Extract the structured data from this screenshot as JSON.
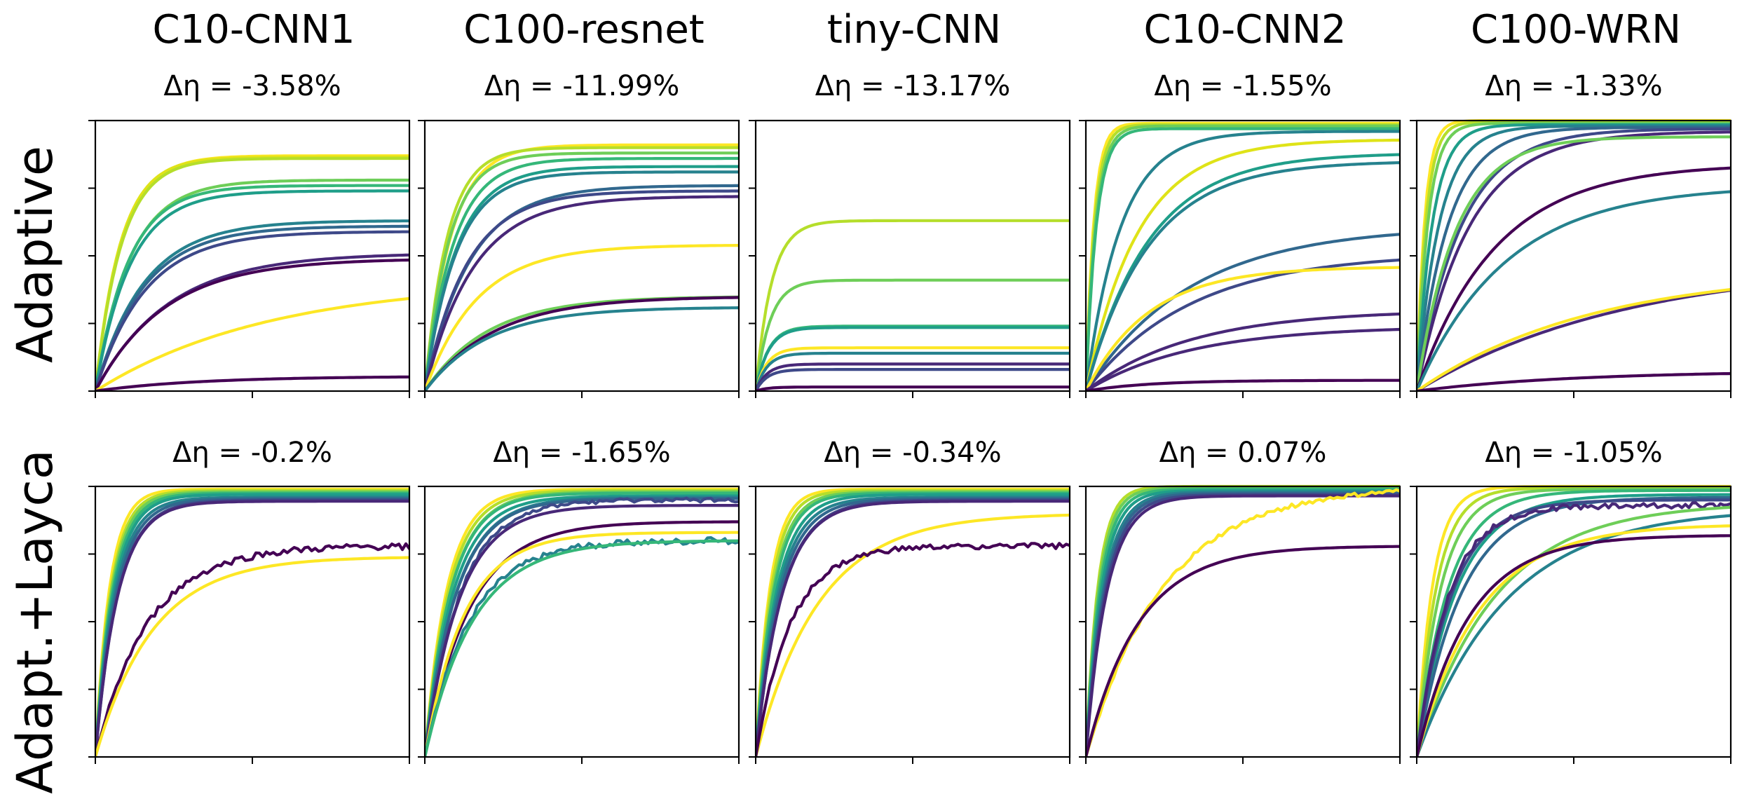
{
  "chart_data": {
    "type": "line",
    "columns": [
      "C10-CNN1",
      "C100-resnet",
      "tiny-CNN",
      "C10-CNN2",
      "C100-WRN"
    ],
    "rows": [
      "Adaptive",
      "Adapt.+Layca"
    ],
    "deltas": [
      [
        "Δη = -3.58%",
        "Δη = -11.99%",
        "Δη = -13.17%",
        "Δη = -1.55%",
        "Δη = -1.33%"
      ],
      [
        "Δη = -0.2%",
        "Δη = -1.65%",
        "Δη = -0.34%",
        "Δη = 0.07%",
        "Δη = -1.05%"
      ]
    ],
    "ylim": [
      0,
      1
    ],
    "xlim": [
      0,
      1
    ],
    "colormap": [
      "#440154",
      "#482878",
      "#3e4989",
      "#31688e",
      "#26828e",
      "#1f9e89",
      "#35b779",
      "#6ece58",
      "#b5de2b",
      "#fde725"
    ],
    "grid": false,
    "series_note_text": "",
    "panels": [
      [
        {
          "curves": [
            {
              "final": 0.87,
              "rate": 12,
              "color": "#fde725"
            },
            {
              "final": 0.865,
              "rate": 12.5,
              "color": "#dfe318"
            },
            {
              "final": 0.86,
              "rate": 12,
              "color": "#b5de2b"
            },
            {
              "final": 0.78,
              "rate": 9,
              "color": "#6ece58"
            },
            {
              "final": 0.76,
              "rate": 9.5,
              "color": "#35b779"
            },
            {
              "final": 0.74,
              "rate": 9,
              "color": "#1f9e89"
            },
            {
              "final": 0.63,
              "rate": 6.5,
              "color": "#26828e"
            },
            {
              "final": 0.61,
              "rate": 6.5,
              "color": "#31688e"
            },
            {
              "final": 0.59,
              "rate": 6.3,
              "color": "#3e4989"
            },
            {
              "final": 0.51,
              "rate": 4.3,
              "color": "#482878"
            },
            {
              "final": 0.49,
              "rate": 4.5,
              "color": "#440154"
            },
            {
              "final": 0.41,
              "rate": 1.8,
              "color": "#fde725"
            },
            {
              "final": 0.055,
              "rate": 3,
              "color": "#440154"
            }
          ]
        },
        {
          "curves": [
            {
              "final": 0.91,
              "rate": 12,
              "color": "#fde725"
            },
            {
              "final": 0.9,
              "rate": 14,
              "color": "#b5de2b"
            },
            {
              "final": 0.88,
              "rate": 13,
              "color": "#6ece58"
            },
            {
              "final": 0.86,
              "rate": 11,
              "color": "#35b779"
            },
            {
              "final": 0.83,
              "rate": 10,
              "color": "#1f9e89"
            },
            {
              "final": 0.81,
              "rate": 10,
              "color": "#26828e"
            },
            {
              "final": 0.76,
              "rate": 7,
              "color": "#31688e"
            },
            {
              "final": 0.74,
              "rate": 7.5,
              "color": "#3e4989"
            },
            {
              "final": 0.72,
              "rate": 6.5,
              "color": "#482878"
            },
            {
              "final": 0.54,
              "rate": 6,
              "color": "#fde725"
            },
            {
              "final": 0.35,
              "rate": 5,
              "color": "#6ece58"
            },
            {
              "final": 0.35,
              "rate": 4.5,
              "color": "#440154"
            },
            {
              "final": 0.31,
              "rate": 5,
              "color": "#26828e"
            }
          ]
        },
        {
          "curves": [
            {
              "final": 0.63,
              "rate": 20,
              "color": "#b5de2b"
            },
            {
              "final": 0.41,
              "rate": 22,
              "color": "#6ece58"
            },
            {
              "final": 0.24,
              "rate": 25,
              "color": "#35b779"
            },
            {
              "final": 0.235,
              "rate": 25,
              "color": "#1f9e89"
            },
            {
              "final": 0.16,
              "rate": 28,
              "color": "#fde725"
            },
            {
              "final": 0.14,
              "rate": 28,
              "color": "#26828e"
            },
            {
              "final": 0.1,
              "rate": 28,
              "color": "#482878"
            },
            {
              "final": 0.08,
              "rate": 28,
              "color": "#3e4989"
            },
            {
              "final": 0.015,
              "rate": 28,
              "color": "#440154"
            }
          ]
        },
        {
          "curves": [
            {
              "final": 0.99,
              "rate": 40,
              "color": "#fde725"
            },
            {
              "final": 0.985,
              "rate": 36,
              "color": "#b5de2b"
            },
            {
              "final": 0.98,
              "rate": 32,
              "color": "#6ece58"
            },
            {
              "final": 0.97,
              "rate": 30,
              "color": "#35b779"
            },
            {
              "final": 0.96,
              "rate": 9,
              "color": "#26828e"
            },
            {
              "final": 0.93,
              "rate": 6,
              "color": "#dfe318"
            },
            {
              "final": 0.88,
              "rate": 5,
              "color": "#1f9e89"
            },
            {
              "final": 0.85,
              "rate": 5,
              "color": "#26828e"
            },
            {
              "final": 0.61,
              "rate": 3,
              "color": "#31688e"
            },
            {
              "final": 0.51,
              "rate": 3,
              "color": "#3e4989"
            },
            {
              "final": 0.46,
              "rate": 5,
              "color": "#fde725"
            },
            {
              "final": 0.3,
              "rate": 3,
              "color": "#482878"
            },
            {
              "final": 0.24,
              "rate": 3,
              "color": "#482878"
            },
            {
              "final": 0.04,
              "rate": 5,
              "color": "#440154"
            }
          ]
        },
        {
          "curves": [
            {
              "final": 1.0,
              "rate": 40,
              "color": "#fde725"
            },
            {
              "final": 0.995,
              "rate": 34,
              "color": "#b5de2b"
            },
            {
              "final": 0.99,
              "rate": 28,
              "color": "#6ece58"
            },
            {
              "final": 0.985,
              "rate": 20,
              "color": "#1f9e89"
            },
            {
              "final": 0.98,
              "rate": 14,
              "color": "#26828e"
            },
            {
              "final": 0.975,
              "rate": 10,
              "color": "#31688e"
            },
            {
              "final": 0.97,
              "rate": 7,
              "color": "#3e4989"
            },
            {
              "final": 0.96,
              "rate": 6,
              "color": "#482878"
            },
            {
              "final": 0.94,
              "rate": 8,
              "color": "#6ece58"
            },
            {
              "final": 0.84,
              "rate": 4,
              "color": "#440154"
            },
            {
              "final": 0.76,
              "rate": 3.5,
              "color": "#26828e"
            },
            {
              "final": 0.48,
              "rate": 1.5,
              "color": "#482878"
            },
            {
              "final": 0.45,
              "rate": 1.8,
              "color": "#fde725"
            },
            {
              "final": 0.075,
              "rate": 2,
              "color": "#440154"
            }
          ]
        }
      ],
      [
        {
          "curves": [
            {
              "final": 0.99,
              "rate": 22,
              "color": "#fde725"
            },
            {
              "final": 0.985,
              "rate": 20,
              "color": "#b5de2b"
            },
            {
              "final": 0.98,
              "rate": 19,
              "color": "#6ece58"
            },
            {
              "final": 0.975,
              "rate": 18,
              "color": "#35b779"
            },
            {
              "final": 0.97,
              "rate": 17,
              "color": "#1f9e89"
            },
            {
              "final": 0.96,
              "rate": 16,
              "color": "#26828e"
            },
            {
              "final": 0.955,
              "rate": 15,
              "color": "#31688e"
            },
            {
              "final": 0.95,
              "rate": 14,
              "color": "#3e4989"
            },
            {
              "final": 0.945,
              "rate": 14,
              "color": "#482878"
            },
            {
              "final": 0.78,
              "rate": 6,
              "color": "#440154",
              "noise": 0.012
            },
            {
              "final": 0.74,
              "rate": 5.5,
              "color": "#fde725"
            }
          ]
        },
        {
          "curves": [
            {
              "final": 0.99,
              "rate": 14,
              "color": "#fde725"
            },
            {
              "final": 0.985,
              "rate": 13,
              "color": "#b5de2b"
            },
            {
              "final": 0.98,
              "rate": 12,
              "color": "#6ece58"
            },
            {
              "final": 0.975,
              "rate": 12,
              "color": "#35b779"
            },
            {
              "final": 0.965,
              "rate": 11,
              "color": "#1f9e89"
            },
            {
              "final": 0.96,
              "rate": 10,
              "color": "#26828e"
            },
            {
              "final": 0.955,
              "rate": 10,
              "color": "#31688e"
            },
            {
              "final": 0.95,
              "rate": 9,
              "color": "#3e4989",
              "noise": 0.008
            },
            {
              "final": 0.93,
              "rate": 9,
              "color": "#482878"
            },
            {
              "final": 0.87,
              "rate": 7,
              "color": "#440154"
            },
            {
              "final": 0.83,
              "rate": 8,
              "color": "#fde725"
            },
            {
              "final": 0.8,
              "rate": 7,
              "color": "#26828e",
              "noise": 0.012
            },
            {
              "final": 0.8,
              "rate": 6.5,
              "color": "#35b779"
            }
          ]
        },
        {
          "curves": [
            {
              "final": 0.99,
              "rate": 22,
              "color": "#fde725"
            },
            {
              "final": 0.985,
              "rate": 20,
              "color": "#b5de2b"
            },
            {
              "final": 0.98,
              "rate": 18,
              "color": "#6ece58"
            },
            {
              "final": 0.975,
              "rate": 17,
              "color": "#35b779"
            },
            {
              "final": 0.97,
              "rate": 15,
              "color": "#1f9e89"
            },
            {
              "final": 0.96,
              "rate": 14,
              "color": "#26828e"
            },
            {
              "final": 0.955,
              "rate": 13,
              "color": "#31688e"
            },
            {
              "final": 0.95,
              "rate": 12,
              "color": "#3e4989"
            },
            {
              "final": 0.945,
              "rate": 12,
              "color": "#482878"
            },
            {
              "final": 0.9,
              "rate": 5,
              "color": "#fde725"
            },
            {
              "final": 0.78,
              "rate": 9,
              "color": "#440154",
              "noise": 0.01
            }
          ]
        },
        {
          "curves": [
            {
              "final": 1.0,
              "rate": 26,
              "color": "#b5de2b"
            },
            {
              "final": 0.995,
              "rate": 24,
              "color": "#6ece58"
            },
            {
              "final": 0.99,
              "rate": 22,
              "color": "#35b779"
            },
            {
              "final": 0.985,
              "rate": 20,
              "color": "#1f9e89"
            },
            {
              "final": 0.98,
              "rate": 18,
              "color": "#26828e"
            },
            {
              "final": 0.975,
              "rate": 17,
              "color": "#31688e"
            },
            {
              "final": 0.97,
              "rate": 16,
              "color": "#3e4989"
            },
            {
              "final": 0.965,
              "rate": 15,
              "color": "#482878"
            },
            {
              "final": 1.0,
              "rate": 4,
              "color": "#fde725",
              "noise": 0.008
            },
            {
              "final": 0.78,
              "rate": 6,
              "color": "#440154"
            }
          ]
        },
        {
          "curves": [
            {
              "final": 1.0,
              "rate": 20,
              "color": "#fde725"
            },
            {
              "final": 0.995,
              "rate": 16,
              "color": "#b5de2b"
            },
            {
              "final": 0.99,
              "rate": 13,
              "color": "#6ece58"
            },
            {
              "final": 0.985,
              "rate": 10,
              "color": "#35b779"
            },
            {
              "final": 0.97,
              "rate": 8,
              "color": "#1f9e89"
            },
            {
              "final": 0.96,
              "rate": 7,
              "color": "#31688e"
            },
            {
              "final": 0.95,
              "rate": 9,
              "color": "#3e4989"
            },
            {
              "final": 0.93,
              "rate": 10,
              "color": "#482878",
              "noise": 0.01
            },
            {
              "final": 0.94,
              "rate": 4,
              "color": "#6ece58"
            },
            {
              "final": 0.92,
              "rate": 3.5,
              "color": "#26828e"
            },
            {
              "final": 0.86,
              "rate": 5,
              "color": "#fde725"
            },
            {
              "final": 0.82,
              "rate": 6,
              "color": "#440154"
            }
          ]
        }
      ]
    ]
  }
}
